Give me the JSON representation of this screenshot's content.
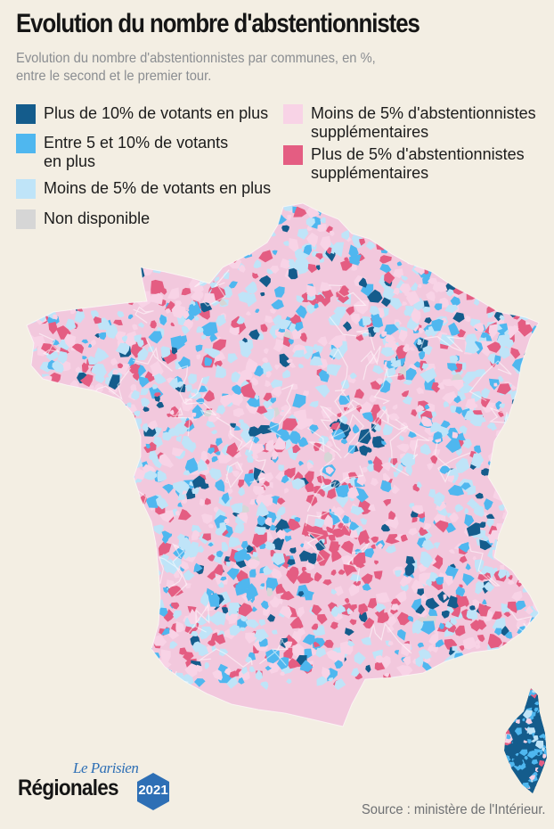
{
  "header": {
    "title": "Evolution du nombre d'abstentionnistes",
    "subtitle": "Evolution du nombre d'abstentionnistes par communes, en %,\nentre le second et le premier tour."
  },
  "legend": {
    "items": [
      {
        "label": "Plus de 10% de votants en plus",
        "color": "#145c8c"
      },
      {
        "label": "Entre 5 et 10% de votants\nen plus",
        "color": "#4fb7ef"
      },
      {
        "label": "Moins de 5% de votants en plus",
        "color": "#bfe4f8"
      },
      {
        "label": "Non disponible",
        "color": "#d6d6d6"
      },
      {
        "label": "Moins de 5% d'abstentionnistes\nsupplémentaires",
        "color": "#f8d3e6"
      },
      {
        "label": "Plus de 5% d'abstentionnistes\nsupplémentaires",
        "color": "#e45d82"
      }
    ]
  },
  "branding": {
    "publisher": "Le Parisien",
    "section": "Régionales",
    "year": "2021"
  },
  "footer": {
    "source": "Source : ministère de l'Intérieur."
  }
}
